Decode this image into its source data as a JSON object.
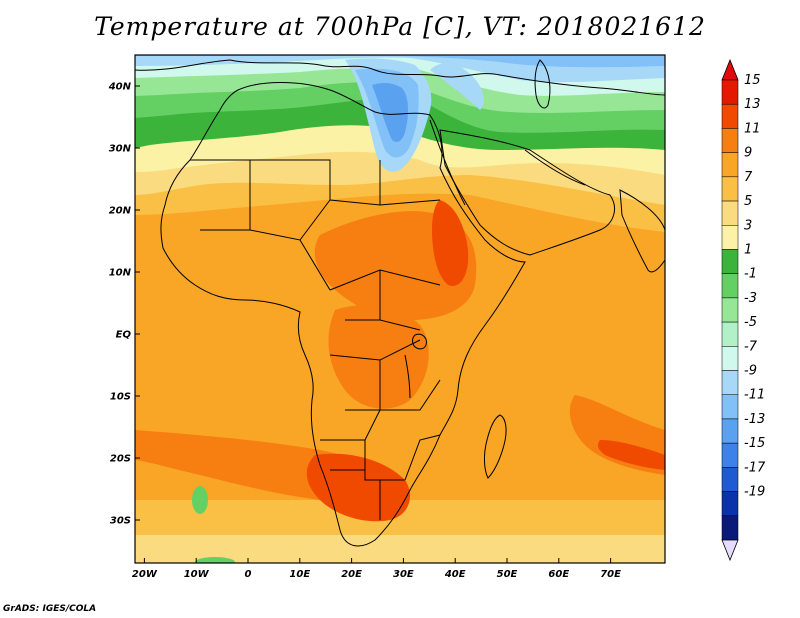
{
  "title": "Temperature at 700hPa [C], VT: 2018021612",
  "credit": "GrADS: IGES/COLA",
  "map": {
    "lat_labels": [
      "40N",
      "30N",
      "20N",
      "10N",
      "EQ",
      "10S",
      "20S",
      "30S"
    ],
    "lat_values": [
      40,
      30,
      20,
      10,
      0,
      -10,
      -20,
      -30
    ],
    "lon_labels": [
      "20W",
      "10W",
      "0",
      "10E",
      "20E",
      "30E",
      "40E",
      "50E",
      "60E",
      "70E"
    ],
    "lon_values": [
      -20,
      -10,
      0,
      10,
      20,
      30,
      40,
      50,
      60,
      70
    ]
  },
  "colorbar": {
    "labels": [
      "15",
      "13",
      "11",
      "9",
      "7",
      "5",
      "3",
      "1",
      "-1",
      "-3",
      "-5",
      "-7",
      "-9",
      "-11",
      "-13",
      "-15",
      "-17",
      "-19"
    ],
    "colors": [
      "#e31a00",
      "#f04a00",
      "#f77e10",
      "#f9a526",
      "#fac046",
      "#fbdb80",
      "#fbf2a6",
      "#3cb43c",
      "#64d064",
      "#96e696",
      "#b2f0c8",
      "#d0f8ec",
      "#a8d8f8",
      "#82c0f8",
      "#5aa2f0",
      "#3c82e8",
      "#1e5ad2",
      "#0a32aa",
      "#0a1a78"
    ],
    "top_arrow_color": "#e00a0a",
    "bottom_arrow_color": "#e6dcff"
  }
}
